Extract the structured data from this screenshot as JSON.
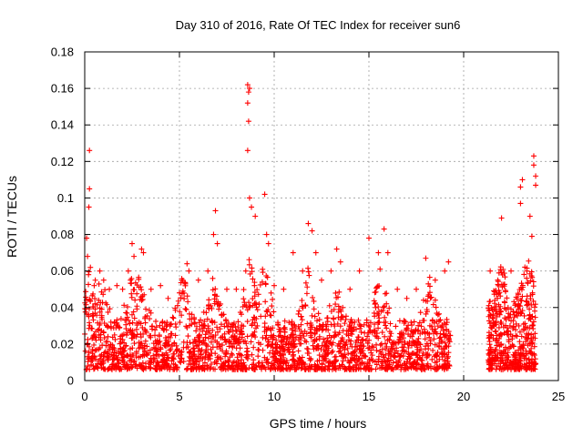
{
  "chart_data": {
    "type": "scatter",
    "title": "Day 310 of 2016, Rate Of TEC Index for receiver sun6",
    "xlabel": "GPS time / hours",
    "ylabel": "ROTI / TECUs",
    "xlim": [
      0,
      25
    ],
    "ylim": [
      0,
      0.18
    ],
    "x_ticks": [
      0,
      5,
      10,
      15,
      20,
      25
    ],
    "x_tick_labels": [
      "0",
      "5",
      "10",
      "15",
      "20",
      "25"
    ],
    "y_ticks": [
      0,
      0.02,
      0.04,
      0.06,
      0.08,
      0.1,
      0.12,
      0.14,
      0.16,
      0.18
    ],
    "y_tick_labels": [
      "0",
      "0.02",
      "0.04",
      "0.06",
      "0.08",
      "0.1",
      "0.12",
      "0.14",
      "0.16",
      "0.18"
    ],
    "grid": true,
    "marker": "+",
    "color": "#ff0000",
    "data_gaps_hours": [
      [
        19.3,
        21.2
      ]
    ],
    "series": [
      {
        "name": "ROTI",
        "points": [
          [
            0.1,
            0.078
          ],
          [
            0.15,
            0.068
          ],
          [
            0.2,
            0.058
          ],
          [
            0.25,
            0.126
          ],
          [
            0.25,
            0.105
          ],
          [
            0.22,
            0.095
          ],
          [
            0.3,
            0.062
          ],
          [
            0.5,
            0.052
          ],
          [
            0.8,
            0.06
          ],
          [
            1.0,
            0.055
          ],
          [
            1.3,
            0.05
          ],
          [
            1.7,
            0.052
          ],
          [
            2.0,
            0.05
          ],
          [
            2.3,
            0.06
          ],
          [
            2.5,
            0.075
          ],
          [
            2.6,
            0.068
          ],
          [
            3.0,
            0.072
          ],
          [
            3.1,
            0.07
          ],
          [
            3.5,
            0.05
          ],
          [
            4.0,
            0.052
          ],
          [
            4.4,
            0.045
          ],
          [
            5.0,
            0.048
          ],
          [
            5.4,
            0.064
          ],
          [
            5.5,
            0.06
          ],
          [
            6.0,
            0.055
          ],
          [
            6.5,
            0.06
          ],
          [
            6.9,
            0.093
          ],
          [
            6.8,
            0.08
          ],
          [
            7.0,
            0.075
          ],
          [
            7.5,
            0.05
          ],
          [
            8.0,
            0.05
          ],
          [
            8.5,
            0.06
          ],
          [
            8.6,
            0.162
          ],
          [
            8.65,
            0.158
          ],
          [
            8.7,
            0.16
          ],
          [
            8.6,
            0.152
          ],
          [
            8.65,
            0.142
          ],
          [
            8.6,
            0.126
          ],
          [
            8.7,
            0.1
          ],
          [
            8.8,
            0.095
          ],
          [
            9.0,
            0.09
          ],
          [
            9.5,
            0.102
          ],
          [
            9.6,
            0.08
          ],
          [
            9.7,
            0.075
          ],
          [
            10.0,
            0.052
          ],
          [
            10.5,
            0.05
          ],
          [
            11.0,
            0.07
          ],
          [
            11.5,
            0.06
          ],
          [
            11.8,
            0.086
          ],
          [
            12.0,
            0.082
          ],
          [
            12.2,
            0.07
          ],
          [
            12.5,
            0.055
          ],
          [
            13.0,
            0.06
          ],
          [
            13.3,
            0.072
          ],
          [
            13.5,
            0.065
          ],
          [
            14.0,
            0.05
          ],
          [
            14.5,
            0.06
          ],
          [
            15.0,
            0.078
          ],
          [
            15.5,
            0.07
          ],
          [
            15.8,
            0.083
          ],
          [
            16.0,
            0.07
          ],
          [
            16.5,
            0.05
          ],
          [
            17.0,
            0.045
          ],
          [
            17.5,
            0.05
          ],
          [
            18.0,
            0.067
          ],
          [
            18.5,
            0.055
          ],
          [
            19.0,
            0.06
          ],
          [
            19.2,
            0.065
          ],
          [
            21.4,
            0.06
          ],
          [
            21.8,
            0.055
          ],
          [
            22.0,
            0.089
          ],
          [
            22.5,
            0.06
          ],
          [
            23.0,
            0.097
          ],
          [
            23.0,
            0.106
          ],
          [
            23.1,
            0.11
          ],
          [
            23.5,
            0.09
          ],
          [
            23.6,
            0.079
          ],
          [
            23.7,
            0.123
          ],
          [
            23.7,
            0.118
          ],
          [
            23.8,
            0.107
          ],
          [
            23.8,
            0.112
          ]
        ]
      }
    ]
  }
}
